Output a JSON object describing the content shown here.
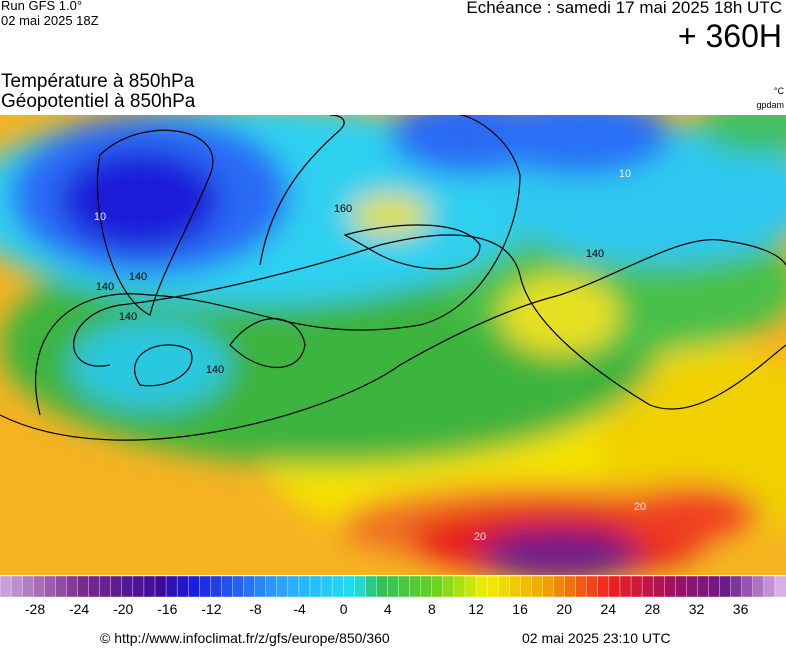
{
  "header": {
    "run": "Run GFS 1.0°",
    "run_date": "02 mai 2025 18Z",
    "echeance": "Echéance : samedi 17 mai 2025 18h UTC",
    "lead": "+ 360H",
    "title_temp": "Température à 850hPa",
    "title_geo": "Géopotentiel à 850hPa",
    "unit_temp": "°C",
    "unit_geo": "gpdam"
  },
  "map": {
    "labels": [
      "140",
      "140",
      "140",
      "140",
      "140",
      "160",
      "10",
      "10",
      "20",
      "20"
    ]
  },
  "colorbar": {
    "labels": [
      "-28",
      "-24",
      "-20",
      "-16",
      "-12",
      "-8",
      "-4",
      "0",
      "4",
      "8",
      "12",
      "16",
      "20",
      "24",
      "28",
      "32",
      "36"
    ]
  },
  "footer": {
    "source": "© http://www.infoclimat.fr/z/gfs/europe/850/360",
    "generated": "02 mai 2025 23:10 UTC"
  }
}
